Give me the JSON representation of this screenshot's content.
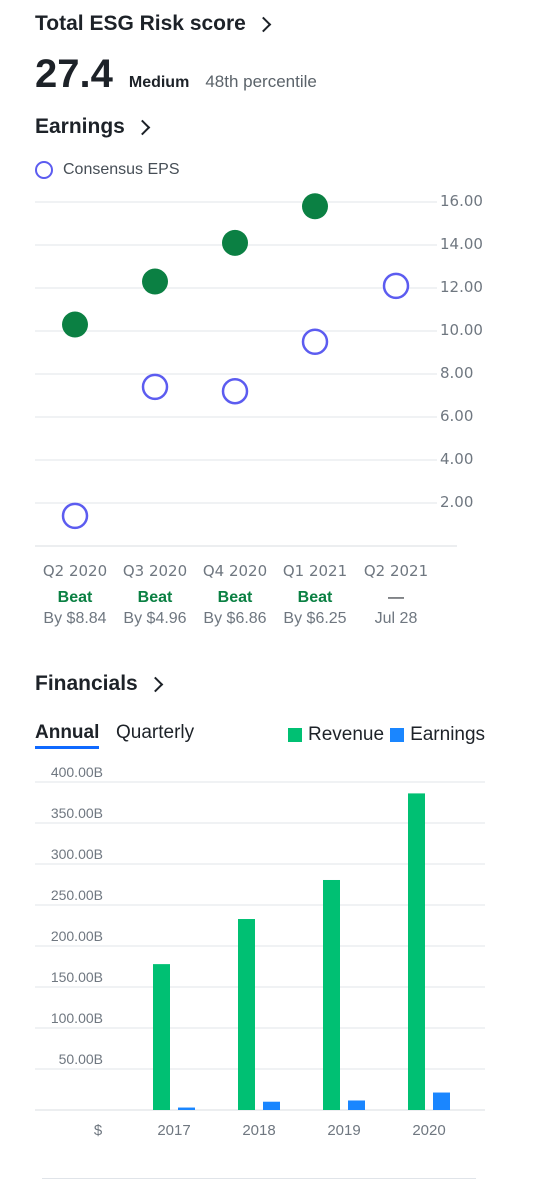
{
  "esg": {
    "title": "Total ESG Risk score",
    "score": "27.4",
    "level": "Medium",
    "percentile": "48th percentile"
  },
  "earnings": {
    "title": "Earnings",
    "legend_label": "Consensus EPS",
    "y_ticks": [
      "16.00",
      "14.00",
      "12.00",
      "10.00",
      "8.00",
      "6.00",
      "4.00",
      "2.00"
    ],
    "quarters": [
      {
        "label": "Q2 2020",
        "status": "Beat",
        "detail": "By $8.84"
      },
      {
        "label": "Q3 2020",
        "status": "Beat",
        "detail": "By $4.96"
      },
      {
        "label": "Q4 2020",
        "status": "Beat",
        "detail": "By $6.86"
      },
      {
        "label": "Q1 2021",
        "status": "Beat",
        "detail": "By $6.25"
      },
      {
        "label": "Q2 2021",
        "status": "—",
        "detail": "Jul 28"
      }
    ]
  },
  "financials": {
    "title": "Financials",
    "tabs": [
      "Annual",
      "Quarterly"
    ],
    "active_tab": "Annual",
    "legend": [
      {
        "label": "Revenue",
        "color": "#00c073"
      },
      {
        "label": "Earnings",
        "color": "#1a86ff"
      }
    ],
    "currency_label": "$",
    "y_ticks": [
      "400.00B",
      "350.00B",
      "300.00B",
      "250.00B",
      "200.00B",
      "150.00B",
      "100.00B",
      "50.00B"
    ]
  },
  "colors": {
    "beat": "#0b8043",
    "consensus": "#5c5cf0",
    "revenue": "#00c073",
    "earnings": "#1a86ff"
  },
  "chart_data": [
    {
      "type": "scatter",
      "title": "Earnings",
      "categories": [
        "Q2 2020",
        "Q3 2020",
        "Q4 2020",
        "Q1 2021",
        "Q2 2021"
      ],
      "series": [
        {
          "name": "Consensus EPS",
          "values": [
            1.4,
            7.4,
            7.2,
            9.5,
            12.1
          ]
        },
        {
          "values": [
            10.3,
            12.3,
            14.1,
            15.8,
            null
          ]
        }
      ],
      "ylim": [
        0,
        16
      ],
      "y_axis_side": "right",
      "grid": true
    },
    {
      "type": "bar",
      "title": "Financials",
      "categories": [
        "2017",
        "2018",
        "2019",
        "2020"
      ],
      "series": [
        {
          "name": "Revenue",
          "values": [
            177.9,
            232.9,
            280.5,
            386.1
          ]
        },
        {
          "name": "Earnings",
          "values": [
            3.0,
            10.1,
            11.6,
            21.3
          ]
        }
      ],
      "y_unit": "B",
      "ylim": [
        0,
        400
      ],
      "grid": true
    }
  ]
}
